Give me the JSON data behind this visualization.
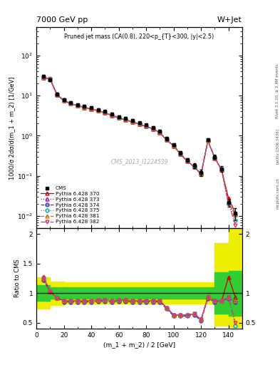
{
  "title_left": "7000 GeV pp",
  "title_right": "W+Jet",
  "plot_title": "Pruned jet mass (CA(0.8), 220<p_{T}<300, |y|<2.5)",
  "xlabel": "(m_1 + m_2) / 2 [GeV]",
  "ylabel_main": "1000/σ 2dσ/d(m_1 + m_2) [1/GeV]",
  "ylabel_ratio": "Ratio to CMS",
  "watermark": "CMS_2013_I1224539",
  "rivet_label": "Rivet 3.1.10, ≥ 2.4M events",
  "arxiv_label": "[arXiv:1306.3436]",
  "mcplots_label": "mcplots.cern.ch",
  "cms_x": [
    5,
    10,
    15,
    20,
    25,
    30,
    35,
    40,
    45,
    50,
    55,
    60,
    65,
    70,
    75,
    80,
    85,
    90,
    95,
    100,
    105,
    110,
    115,
    120,
    125,
    130,
    135,
    140,
    145
  ],
  "cms_y": [
    30,
    25,
    11,
    8.0,
    6.8,
    6.0,
    5.5,
    5.0,
    4.5,
    4.0,
    3.5,
    3.0,
    2.7,
    2.4,
    2.1,
    1.85,
    1.6,
    1.3,
    0.85,
    0.6,
    0.38,
    0.25,
    0.18,
    0.12,
    0.8,
    0.3,
    0.15,
    0.022,
    0.012
  ],
  "cms_yerr": [
    2.5,
    2.0,
    0.8,
    0.6,
    0.5,
    0.4,
    0.4,
    0.35,
    0.3,
    0.3,
    0.25,
    0.22,
    0.2,
    0.18,
    0.15,
    0.13,
    0.12,
    0.1,
    0.08,
    0.06,
    0.04,
    0.03,
    0.025,
    0.02,
    0.08,
    0.04,
    0.025,
    0.005,
    0.004
  ],
  "py370_x": [
    5,
    10,
    15,
    20,
    25,
    30,
    35,
    40,
    45,
    50,
    55,
    60,
    65,
    70,
    75,
    80,
    85,
    90,
    95,
    100,
    105,
    110,
    115,
    120,
    125,
    130,
    135,
    140,
    145
  ],
  "py370_y": [
    28,
    26,
    10.5,
    7.5,
    6.3,
    5.6,
    5.1,
    4.6,
    4.2,
    3.7,
    3.2,
    2.8,
    2.5,
    2.2,
    1.95,
    1.7,
    1.48,
    1.18,
    0.78,
    0.56,
    0.35,
    0.23,
    0.17,
    0.11,
    0.75,
    0.28,
    0.14,
    0.028,
    0.012
  ],
  "py373_y": [
    28,
    26,
    10.5,
    7.5,
    6.3,
    5.6,
    5.1,
    4.6,
    4.2,
    3.7,
    3.2,
    2.8,
    2.5,
    2.2,
    1.95,
    1.7,
    1.48,
    1.18,
    0.78,
    0.56,
    0.35,
    0.23,
    0.17,
    0.11,
    0.75,
    0.28,
    0.14,
    0.021,
    0.011
  ],
  "py374_y": [
    28,
    26,
    10.5,
    7.5,
    6.3,
    5.6,
    5.1,
    4.6,
    4.2,
    3.7,
    3.2,
    2.8,
    2.5,
    2.2,
    1.95,
    1.7,
    1.48,
    1.18,
    0.78,
    0.56,
    0.35,
    0.23,
    0.17,
    0.11,
    0.75,
    0.28,
    0.14,
    0.021,
    0.011
  ],
  "py375_y": [
    29,
    27,
    11.0,
    7.8,
    6.5,
    5.7,
    5.2,
    4.7,
    4.3,
    3.8,
    3.3,
    2.85,
    2.55,
    2.25,
    2.0,
    1.72,
    1.5,
    1.2,
    0.8,
    0.58,
    0.36,
    0.235,
    0.175,
    0.115,
    0.77,
    0.29,
    0.145,
    0.021,
    0.008
  ],
  "py381_y": [
    28,
    26,
    10.5,
    7.5,
    6.3,
    5.6,
    5.1,
    4.6,
    4.2,
    3.7,
    3.2,
    2.8,
    2.5,
    2.2,
    1.95,
    1.7,
    1.48,
    1.18,
    0.78,
    0.56,
    0.35,
    0.23,
    0.17,
    0.11,
    0.75,
    0.28,
    0.14,
    0.021,
    0.011
  ],
  "py382_y": [
    28,
    26,
    10.5,
    7.5,
    6.3,
    5.6,
    5.1,
    4.6,
    4.2,
    3.7,
    3.2,
    2.8,
    2.5,
    2.2,
    1.95,
    1.7,
    1.48,
    1.18,
    0.78,
    0.56,
    0.35,
    0.23,
    0.17,
    0.11,
    0.75,
    0.28,
    0.14,
    0.021,
    0.006
  ],
  "ratio_x": [
    5,
    10,
    15,
    20,
    25,
    30,
    35,
    40,
    45,
    50,
    55,
    60,
    65,
    70,
    75,
    80,
    85,
    90,
    95,
    100,
    105,
    110,
    115,
    120,
    125,
    130,
    135,
    140,
    145
  ],
  "r370_y": [
    1.28,
    1.03,
    0.92,
    0.87,
    0.87,
    0.87,
    0.87,
    0.87,
    0.88,
    0.88,
    0.87,
    0.88,
    0.88,
    0.87,
    0.87,
    0.87,
    0.87,
    0.87,
    0.75,
    0.63,
    0.63,
    0.63,
    0.65,
    0.55,
    0.93,
    0.87,
    0.87,
    1.27,
    0.93
  ],
  "r373_y": [
    1.25,
    1.03,
    0.92,
    0.87,
    0.87,
    0.87,
    0.87,
    0.87,
    0.88,
    0.88,
    0.87,
    0.88,
    0.88,
    0.87,
    0.87,
    0.87,
    0.87,
    0.87,
    0.75,
    0.63,
    0.63,
    0.63,
    0.65,
    0.55,
    0.93,
    0.87,
    0.87,
    0.93,
    0.87
  ],
  "r374_y": [
    1.22,
    1.03,
    0.92,
    0.85,
    0.85,
    0.85,
    0.85,
    0.85,
    0.86,
    0.86,
    0.85,
    0.86,
    0.86,
    0.85,
    0.85,
    0.85,
    0.85,
    0.85,
    0.73,
    0.61,
    0.61,
    0.61,
    0.63,
    0.53,
    0.91,
    0.85,
    0.87,
    0.91,
    0.85
  ],
  "r375_y": [
    1.26,
    1.04,
    0.93,
    0.87,
    0.87,
    0.87,
    0.87,
    0.87,
    0.88,
    0.88,
    0.87,
    0.88,
    0.88,
    0.87,
    0.87,
    0.87,
    0.87,
    0.87,
    0.75,
    0.63,
    0.63,
    0.63,
    0.65,
    0.55,
    0.93,
    0.87,
    0.87,
    0.93,
    0.45
  ],
  "r381_y": [
    1.26,
    1.03,
    0.92,
    0.87,
    0.87,
    0.87,
    0.87,
    0.87,
    0.88,
    0.88,
    0.87,
    0.88,
    0.88,
    0.87,
    0.87,
    0.87,
    0.87,
    0.87,
    0.75,
    0.63,
    0.63,
    0.63,
    0.65,
    0.55,
    0.93,
    0.87,
    0.87,
    0.93,
    0.87
  ],
  "r382_y": [
    1.26,
    1.03,
    0.92,
    0.87,
    0.87,
    0.87,
    0.87,
    0.87,
    0.88,
    0.88,
    0.87,
    0.88,
    0.88,
    0.87,
    0.87,
    0.87,
    0.87,
    0.87,
    0.75,
    0.63,
    0.63,
    0.63,
    0.65,
    0.55,
    0.93,
    0.87,
    0.87,
    0.93,
    0.5
  ],
  "band_edges": [
    0,
    10,
    20,
    30,
    40,
    50,
    60,
    70,
    80,
    90,
    100,
    110,
    120,
    130,
    140,
    150
  ],
  "yellow_lo": [
    0.73,
    0.8,
    0.82,
    0.82,
    0.82,
    0.82,
    0.82,
    0.82,
    0.82,
    0.82,
    0.82,
    0.82,
    0.82,
    0.45,
    0.42,
    0.42
  ],
  "yellow_hi": [
    1.27,
    1.2,
    1.18,
    1.18,
    1.18,
    1.18,
    1.18,
    1.18,
    1.18,
    1.18,
    1.18,
    1.18,
    1.18,
    1.85,
    2.1,
    2.1
  ],
  "green_lo": [
    0.87,
    0.9,
    0.9,
    0.9,
    0.9,
    0.9,
    0.9,
    0.9,
    0.9,
    0.9,
    0.9,
    0.9,
    0.9,
    0.65,
    0.62,
    0.62
  ],
  "green_hi": [
    1.13,
    1.1,
    1.1,
    1.1,
    1.1,
    1.1,
    1.1,
    1.1,
    1.1,
    1.1,
    1.1,
    1.1,
    1.1,
    1.35,
    1.38,
    1.38
  ],
  "color_370": "#cc0000",
  "color_373": "#bb00bb",
  "color_374": "#3333cc",
  "color_375": "#00aaaa",
  "color_381": "#cc7700",
  "color_382": "#dd3377",
  "color_cms": "black",
  "color_green": "#33cc33",
  "color_yellow": "#eeee00",
  "xlim": [
    0,
    150
  ],
  "ylim_main": [
    0.005,
    500
  ],
  "ylim_ratio": [
    0.4,
    2.1
  ],
  "yticks_ratio": [
    0.5,
    1.0,
    1.5,
    2.0
  ],
  "ytick_labels_ratio": [
    "0.5",
    "1",
    "1.5",
    "2"
  ],
  "yticks_ratio_right": [
    0.5,
    1.0,
    2.0
  ],
  "ytick_labels_ratio_right": [
    "0.5",
    "1",
    "2"
  ]
}
